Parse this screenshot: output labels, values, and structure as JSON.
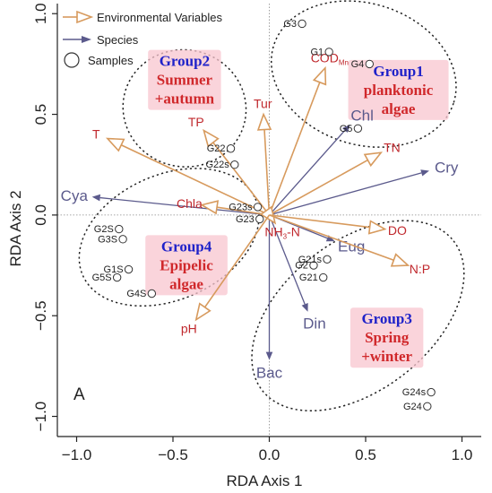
{
  "chart_data": {
    "type": "scatter",
    "panel_label": "A",
    "xlabel": "RDA Axis 1",
    "ylabel": "RDA Axis 2",
    "xlim": [
      -1.1,
      1.1
    ],
    "ylim": [
      -1.1,
      1.05
    ],
    "xticks": [
      -1.0,
      -0.5,
      0.0,
      0.5,
      1.0
    ],
    "xtick_labels": [
      "−1.0",
      "−0.5",
      "0.0",
      "0.5",
      "1.0"
    ],
    "yticks": [
      -1.0,
      -0.5,
      0.0,
      0.5,
      1.0
    ],
    "ytick_labels": [
      "−1.0",
      "−0.5",
      "0.0",
      "0.5",
      "1.0"
    ],
    "legend": {
      "position": "top-left",
      "entries": [
        "Environmental Variables",
        "Species",
        "Samples"
      ]
    },
    "colors": {
      "env_arrow": "#d79a5d",
      "env_label": "#c0282d",
      "species": "#5b5a8c",
      "group_title": "#1f22c9",
      "group_desc": "#d0282b",
      "group_bg": "#f8c6cf"
    },
    "environmental_variables": [
      {
        "label": "COD",
        "sub": "Mn",
        "x": 0.29,
        "y": 0.73
      },
      {
        "label": "Tur",
        "x": -0.03,
        "y": 0.5
      },
      {
        "label": "TP",
        "x": -0.34,
        "y": 0.42
      },
      {
        "label": "T",
        "x": -0.84,
        "y": 0.38
      },
      {
        "label": "TN",
        "x": 0.58,
        "y": 0.31
      },
      {
        "label": "Chla",
        "x": -0.35,
        "y": 0.05
      },
      {
        "label": "NH",
        "sub": "3",
        "suffix": "-N",
        "x": 0.03,
        "y": -0.04
      },
      {
        "label": "DO",
        "x": 0.6,
        "y": -0.07
      },
      {
        "label": "N:P",
        "x": 0.72,
        "y": -0.25
      },
      {
        "label": "pH",
        "x": -0.38,
        "y": -0.52
      }
    ],
    "species": [
      {
        "label": "Chl",
        "x": 0.42,
        "y": 0.45
      },
      {
        "label": "Cry",
        "x": 0.83,
        "y": 0.22
      },
      {
        "label": "Cya",
        "x": -0.92,
        "y": 0.09
      },
      {
        "label": "Eug",
        "x": 0.34,
        "y": -0.13
      },
      {
        "label": "Din",
        "x": 0.2,
        "y": -0.48
      },
      {
        "label": "Bac",
        "x": 0.0,
        "y": -0.72
      }
    ],
    "samples": [
      {
        "label": "G3",
        "x": 0.17,
        "y": 0.95
      },
      {
        "label": "G1",
        "x": 0.31,
        "y": 0.81
      },
      {
        "label": "G4",
        "x": 0.52,
        "y": 0.75
      },
      {
        "label": "G5",
        "x": 0.46,
        "y": 0.43
      },
      {
        "label": "G22",
        "x": -0.2,
        "y": 0.33
      },
      {
        "label": "G22s",
        "x": -0.18,
        "y": 0.25
      },
      {
        "label": "G23s",
        "x": -0.06,
        "y": 0.04
      },
      {
        "label": "G23",
        "x": -0.05,
        "y": -0.02
      },
      {
        "label": "G2S",
        "x": -0.78,
        "y": -0.07
      },
      {
        "label": "G3S",
        "x": -0.76,
        "y": -0.12
      },
      {
        "label": "G1S",
        "x": -0.73,
        "y": -0.27
      },
      {
        "label": "G5S",
        "x": -0.79,
        "y": -0.31
      },
      {
        "label": "G4S",
        "x": -0.61,
        "y": -0.39
      },
      {
        "label": "G2",
        "x": 0.23,
        "y": -0.25
      },
      {
        "label": "G21s",
        "x": 0.3,
        "y": -0.22
      },
      {
        "label": "G21",
        "x": 0.28,
        "y": -0.31
      },
      {
        "label": "G24s",
        "x": 0.84,
        "y": -0.88
      },
      {
        "label": "G24",
        "x": 0.82,
        "y": -0.95
      }
    ],
    "groups": [
      {
        "title": "Group2",
        "lines": [
          "Summer",
          "+autumn"
        ],
        "cx": -0.44,
        "cy": 0.53,
        "rx": 0.32,
        "ry": 0.29,
        "angle": -12,
        "tx": -0.44,
        "ty": 0.74
      },
      {
        "title": "Group1",
        "lines": [
          "planktonic",
          "algae"
        ],
        "cx": 0.49,
        "cy": 0.7,
        "rx": 0.49,
        "ry": 0.35,
        "angle": -18,
        "tx": 0.67,
        "ty": 0.69
      },
      {
        "title": "Group4",
        "lines": [
          "Epipelic",
          "algae"
        ],
        "cx": -0.52,
        "cy": -0.11,
        "rx": 0.49,
        "ry": 0.31,
        "angle": 24,
        "tx": -0.43,
        "ty": -0.18
      },
      {
        "title": "Group3",
        "lines": [
          "Spring",
          "+winter"
        ],
        "cx": 0.46,
        "cy": -0.5,
        "rx": 0.63,
        "ry": 0.37,
        "angle": 38,
        "tx": 0.61,
        "ty": -0.54
      }
    ]
  }
}
